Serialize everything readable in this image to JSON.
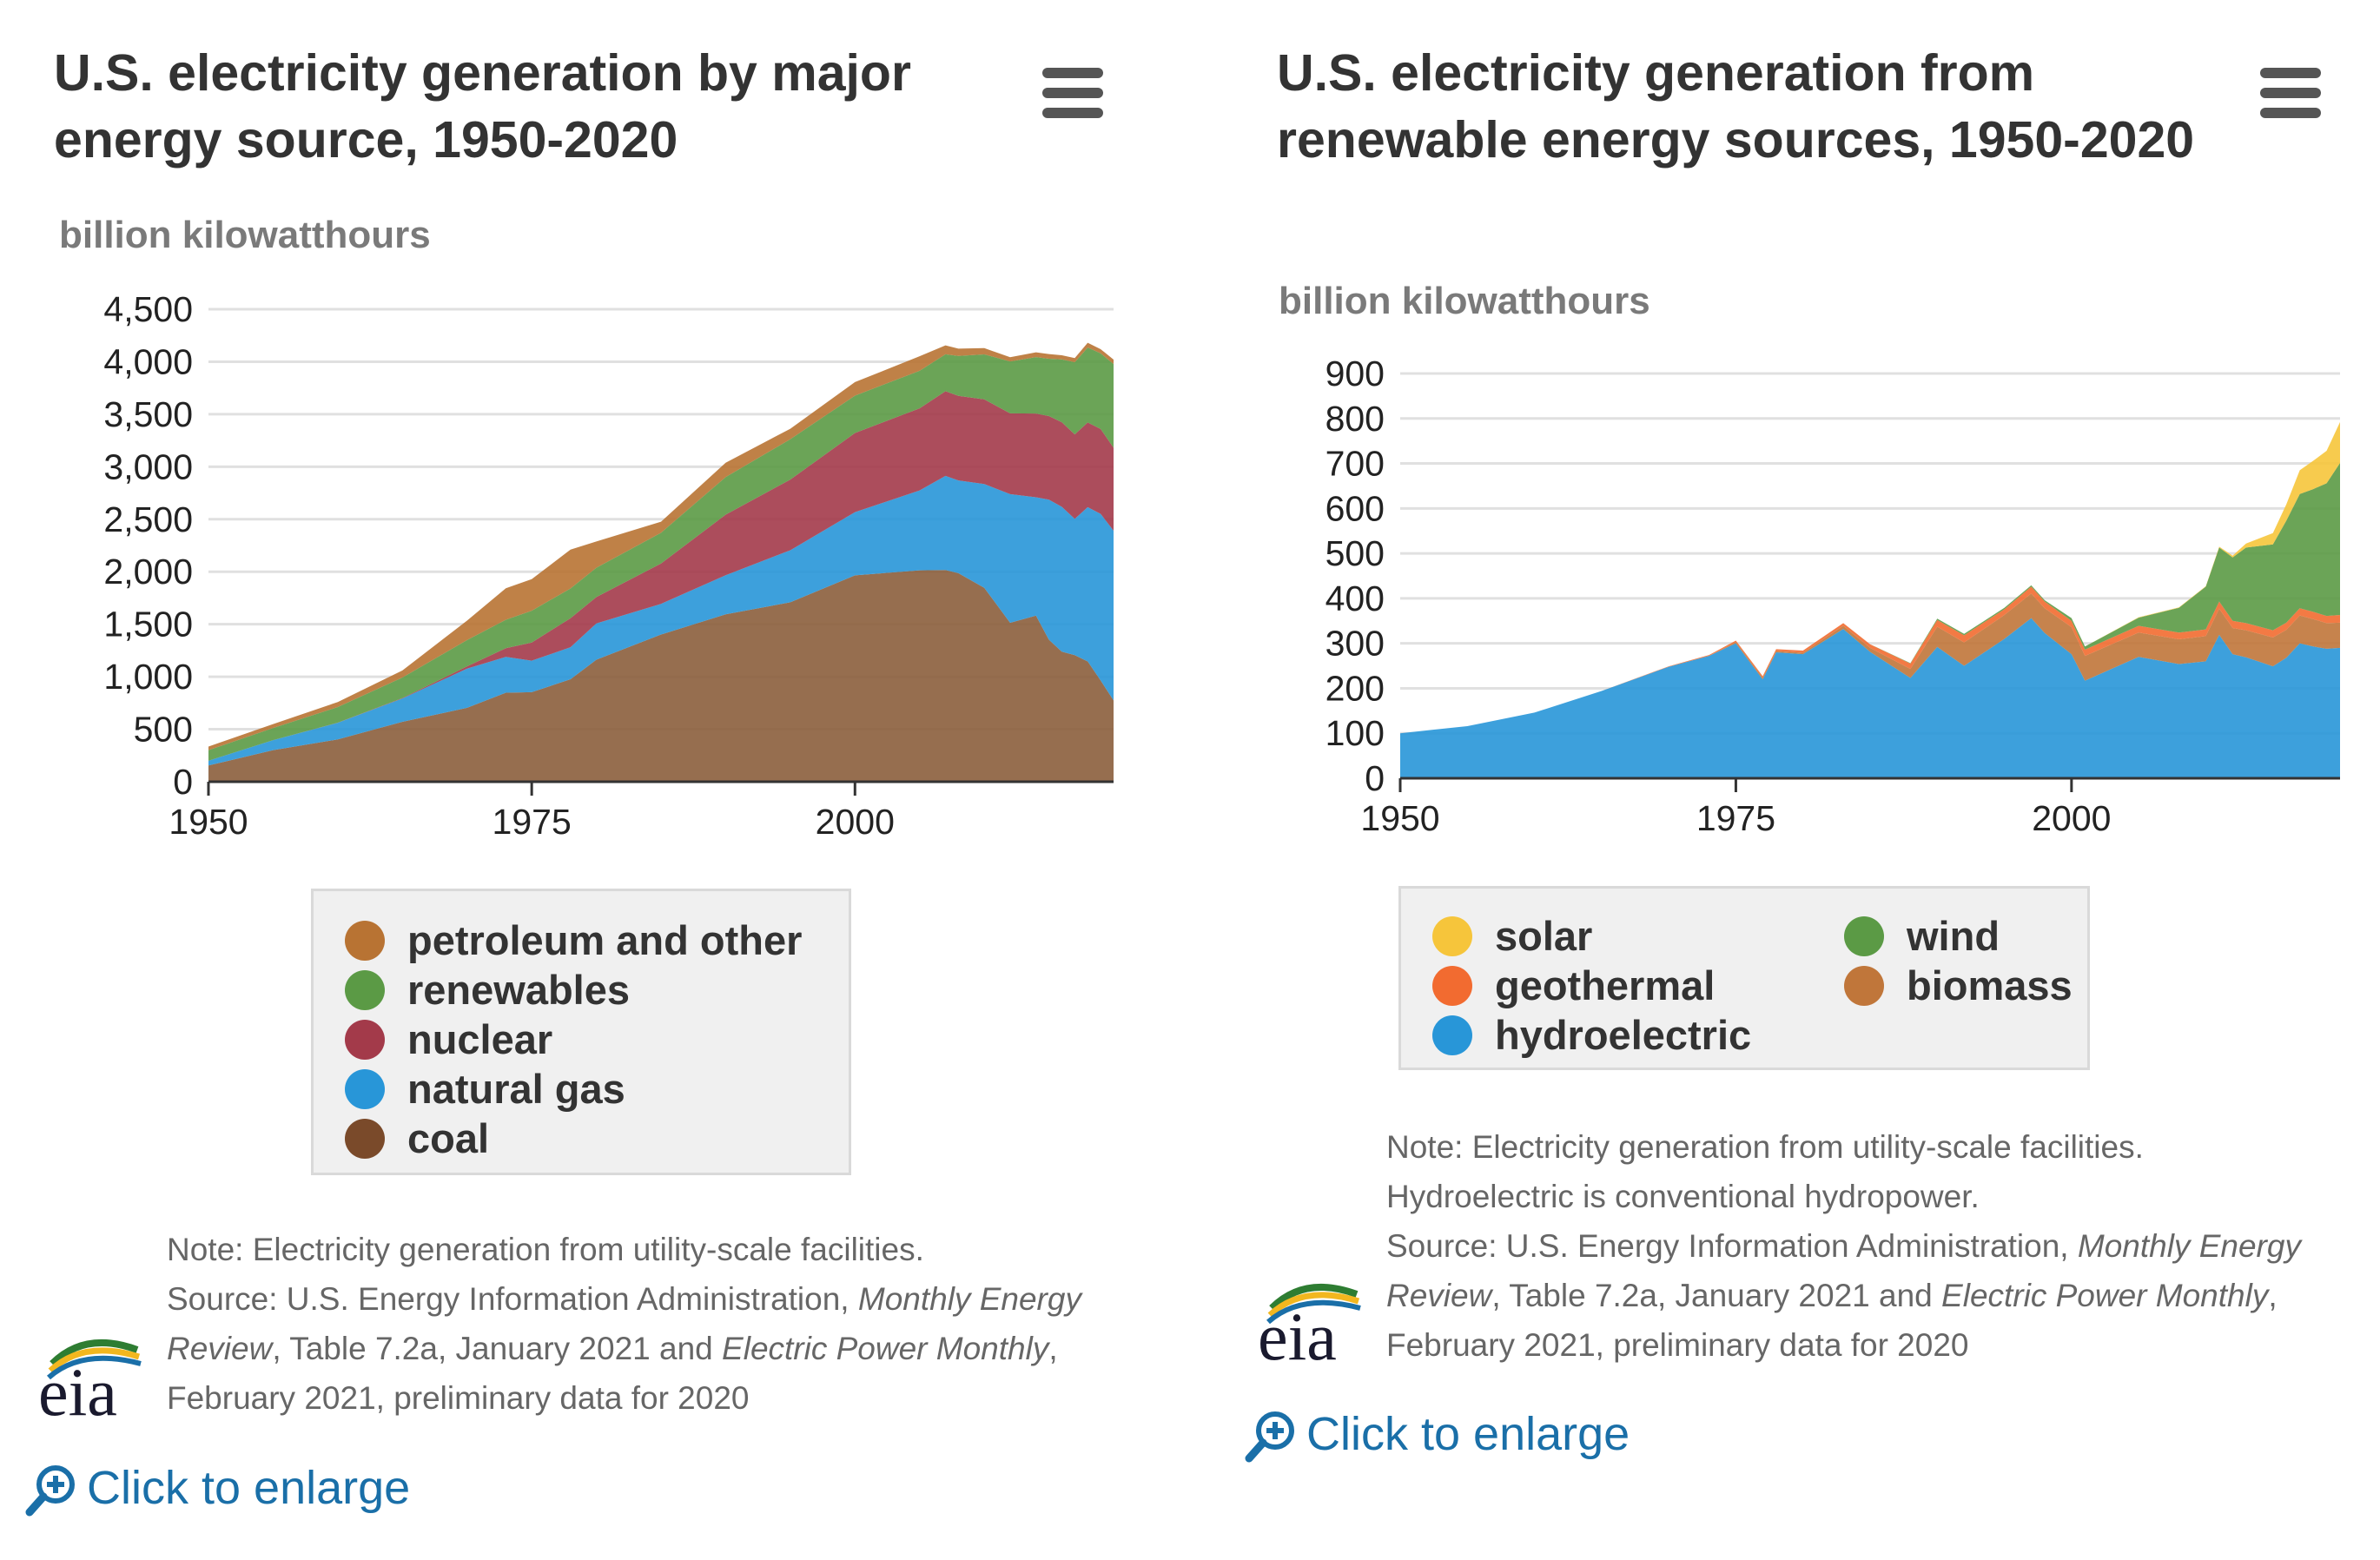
{
  "charts": [
    {
      "title": "U.S. electricity generation by major energy source, 1950-2020",
      "unit_label": "billion kilowatthours",
      "legend": [
        "petroleum and other",
        "renewables",
        "nuclear",
        "natural gas",
        "coal"
      ],
      "note_line1": "Note: Electricity generation from utility-scale facilities.",
      "source_prefix": "Source: U.S. Energy Information Administration, ",
      "source_italic1": "Monthly Energy Review",
      "source_mid": ", Table 7.2a, January 2021 and ",
      "source_italic2": "Electric Power Monthly",
      "source_suffix": ", February 2021, preliminary data for 2020",
      "enlarge_label": "Click to enlarge"
    },
    {
      "title": "U.S. electricity generation from renewable energy sources, 1950-2020",
      "unit_label": "billion kilowatthours",
      "legend": [
        "solar",
        "wind",
        "geothermal",
        "biomass",
        "hydroelectric"
      ],
      "note_line1": "Note: Electricity generation from utility-scale facilities.",
      "note_line2": "Hydroelectric is conventional hydropower.",
      "source_prefix": "Source: U.S. Energy Information Administration, ",
      "source_italic1": "Monthly Energy Review",
      "source_mid": ", Table 7.2a, January 2021 and ",
      "source_italic2": "Electric Power Monthly",
      "source_suffix": ", February 2021, preliminary data for 2020",
      "enlarge_label": "Click to enlarge"
    }
  ],
  "logo_text": "eia",
  "colors": {
    "petroleum": "#b87333",
    "renewables": "#5b9a45",
    "nuclear": "#a33a4a",
    "natural_gas": "#2896d8",
    "coal": "#8b5e3c",
    "solar": "#f6c53b",
    "wind": "#5b9a45",
    "geothermal": "#f26b30",
    "biomass": "#c0763a",
    "hydroelectric": "#2896d8"
  },
  "chart_data": [
    {
      "type": "area",
      "stacked": true,
      "title": "U.S. electricity generation by major energy source, 1950-2020",
      "ylabel": "billion kilowatthours",
      "xlim": [
        1950,
        2020
      ],
      "ylim": [
        0,
        4500
      ],
      "yticks": [
        0,
        500,
        1000,
        1500,
        2000,
        2500,
        3000,
        3500,
        4000,
        4500
      ],
      "xticks": [
        1950,
        1975,
        2000
      ],
      "grid": true,
      "legend_position": "bottom",
      "x": [
        1950,
        1955,
        1960,
        1965,
        1970,
        1973,
        1975,
        1978,
        1980,
        1985,
        1990,
        1995,
        2000,
        2005,
        2007,
        2008,
        2010,
        2012,
        2014,
        2015,
        2016,
        2017,
        2018,
        2019,
        2020
      ],
      "series": [
        {
          "name": "coal",
          "values": [
            155,
            301,
            403,
            571,
            704,
            848,
            853,
            976,
            1162,
            1402,
            1594,
            1709,
            1966,
            2013,
            2016,
            1986,
            1847,
            1514,
            1582,
            1352,
            1239,
            1206,
            1146,
            965,
            774
          ]
        },
        {
          "name": "natural gas",
          "values": [
            45,
            95,
            158,
            222,
            373,
            341,
            300,
            305,
            346,
            292,
            373,
            496,
            601,
            761,
            897,
            883,
            988,
            1225,
            1127,
            1334,
            1379,
            1297,
            1469,
            1586,
            1617
          ]
        },
        {
          "name": "nuclear",
          "values": [
            0,
            0,
            1,
            4,
            22,
            83,
            173,
            276,
            251,
            384,
            577,
            673,
            754,
            782,
            806,
            806,
            807,
            769,
            797,
            797,
            806,
            805,
            807,
            809,
            790
          ]
        },
        {
          "name": "renewables",
          "values": [
            101,
            116,
            149,
            196,
            250,
            271,
            303,
            284,
            279,
            293,
            357,
            384,
            356,
            358,
            352,
            380,
            428,
            495,
            538,
            545,
            598,
            687,
            713,
            720,
            797
          ]
        },
        {
          "name": "petroleum and other",
          "values": [
            34,
            37,
            48,
            67,
            185,
            300,
            300,
            370,
            250,
            105,
            137,
            100,
            129,
            138,
            85,
            70,
            60,
            40,
            45,
            45,
            40,
            40,
            45,
            40,
            42
          ]
        }
      ]
    },
    {
      "type": "area",
      "stacked": true,
      "title": "U.S. electricity generation from renewable energy sources, 1950-2020",
      "ylabel": "billion kilowatthours",
      "xlim": [
        1950,
        2020
      ],
      "ylim": [
        0,
        900
      ],
      "yticks": [
        0,
        100,
        200,
        300,
        400,
        500,
        600,
        700,
        800,
        900
      ],
      "xticks": [
        1950,
        1975,
        2000
      ],
      "grid": true,
      "legend_position": "bottom",
      "x": [
        1950,
        1955,
        1960,
        1965,
        1970,
        1973,
        1975,
        1977,
        1978,
        1980,
        1983,
        1985,
        1988,
        1990,
        1992,
        1995,
        1997,
        1998,
        2000,
        2001,
        2005,
        2008,
        2010,
        2011,
        2012,
        2013,
        2015,
        2016,
        2017,
        2018,
        2019,
        2020
      ],
      "series": [
        {
          "name": "hydroelectric",
          "values": [
            100,
            116,
            146,
            194,
            248,
            272,
            300,
            220,
            280,
            276,
            332,
            281,
            223,
            292,
            250,
            310,
            356,
            323,
            276,
            217,
            270,
            254,
            260,
            319,
            276,
            269,
            249,
            268,
            300,
            293,
            288,
            290
          ]
        },
        {
          "name": "biomass",
          "values": [
            0,
            0,
            0,
            0,
            0,
            0,
            3,
            3,
            3,
            3,
            7,
            9,
            20,
            45,
            52,
            53,
            55,
            55,
            60,
            55,
            54,
            55,
            56,
            58,
            58,
            60,
            64,
            62,
            62,
            61,
            57,
            56
          ]
        },
        {
          "name": "geothermal",
          "values": [
            0,
            0,
            0,
            0,
            1,
            2,
            3,
            4,
            4,
            5,
            6,
            8,
            12,
            15,
            16,
            13,
            15,
            15,
            14,
            14,
            15,
            15,
            15,
            16,
            16,
            16,
            16,
            16,
            16,
            16,
            16,
            17
          ]
        },
        {
          "name": "wind",
          "values": [
            0,
            0,
            0,
            0,
            0,
            0,
            0,
            0,
            0,
            0,
            0,
            0,
            1,
            3,
            3,
            3,
            3,
            3,
            6,
            7,
            18,
            55,
            95,
            120,
            141,
            168,
            191,
            227,
            254,
            273,
            295,
            338
          ]
        },
        {
          "name": "solar",
          "values": [
            0,
            0,
            0,
            0,
            0,
            0,
            0,
            0,
            0,
            0,
            0,
            0,
            0,
            0,
            0,
            0,
            0,
            0,
            0,
            0,
            1,
            1,
            1,
            2,
            4,
            9,
            25,
            36,
            53,
            63,
            72,
            91
          ]
        }
      ]
    }
  ]
}
